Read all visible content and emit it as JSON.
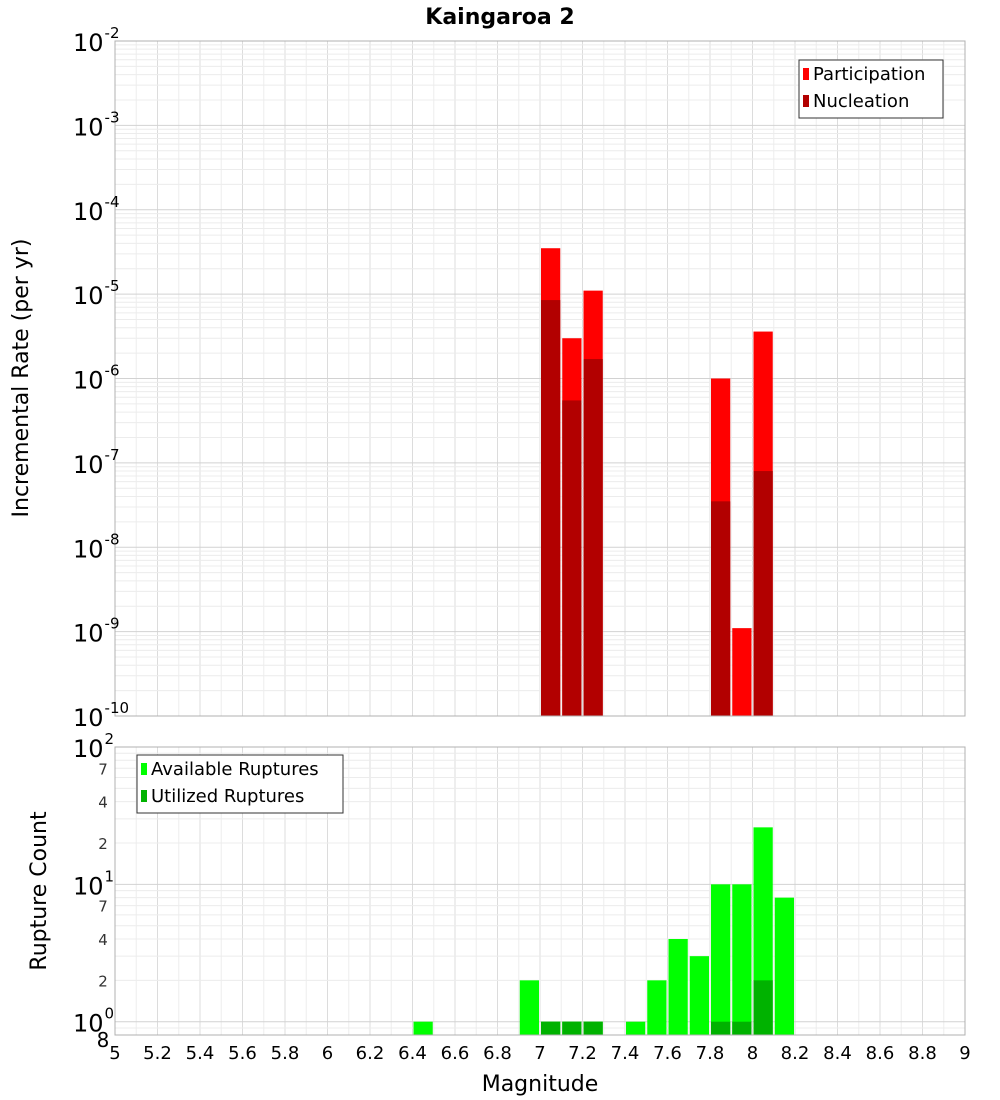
{
  "chart_data": [
    {
      "type": "bar",
      "title": "Kaingaroa 2",
      "ylabel": "Incremental Rate (per yr)",
      "xlabel": "",
      "xlim": [
        5,
        9
      ],
      "ylim": [
        1e-10,
        0.01
      ],
      "yscale": "log",
      "x_ticks": [
        "5",
        "5.2",
        "5.4",
        "5.6",
        "5.8",
        "6",
        "6.2",
        "6.4",
        "6.6",
        "6.8",
        "7",
        "7.2",
        "7.4",
        "7.6",
        "7.8",
        "8",
        "8.2",
        "8.4",
        "8.6",
        "8.8",
        "9"
      ],
      "y_decades": [
        {
          "base": "10",
          "exp": "-10",
          "value": 1e-10
        },
        {
          "base": "10",
          "exp": "-9",
          "value": 1e-09
        },
        {
          "base": "10",
          "exp": "-8",
          "value": 1e-08
        },
        {
          "base": "10",
          "exp": "-7",
          "value": 1e-07
        },
        {
          "base": "10",
          "exp": "-6",
          "value": 1e-06
        },
        {
          "base": "10",
          "exp": "-5",
          "value": 1e-05
        },
        {
          "base": "10",
          "exp": "-4",
          "value": 0.0001
        },
        {
          "base": "10",
          "exp": "-3",
          "value": 0.001
        },
        {
          "base": "10",
          "exp": "-2",
          "value": 0.01
        }
      ],
      "grid": true,
      "legend_position": "top-right",
      "bin_width": 0.1,
      "series": [
        {
          "name": "Participation",
          "color": "#ff0000",
          "x": [
            7.05,
            7.15,
            7.25,
            7.85,
            7.95,
            8.05
          ],
          "values": [
            3.5e-05,
            3e-06,
            1.1e-05,
            1e-06,
            1.1e-09,
            3.6e-06
          ]
        },
        {
          "name": "Nucleation",
          "color": "#b20000",
          "x": [
            7.05,
            7.15,
            7.25,
            7.85,
            8.05
          ],
          "values": [
            8.5e-06,
            5.5e-07,
            1.7e-06,
            3.5e-08,
            8e-08
          ]
        }
      ]
    },
    {
      "type": "bar",
      "title": "",
      "ylabel": "Rupture Count",
      "xlabel": "Magnitude",
      "xlim": [
        5,
        9
      ],
      "ylim": [
        0.8,
        100
      ],
      "yscale": "log",
      "x_ticks": [
        "5",
        "5.2",
        "5.4",
        "5.6",
        "5.8",
        "6",
        "6.2",
        "6.4",
        "6.6",
        "6.8",
        "7",
        "7.2",
        "7.4",
        "7.6",
        "7.8",
        "8",
        "8.2",
        "8.4",
        "8.6",
        "8.8",
        "9"
      ],
      "y_decades": [
        {
          "base": "10",
          "exp": "0",
          "value": 1
        },
        {
          "base": "10",
          "exp": "1",
          "value": 10
        },
        {
          "base": "10",
          "exp": "2",
          "value": 100
        }
      ],
      "y_minor_labels": [
        {
          "label": "8",
          "value": 0.8
        },
        {
          "label": "2",
          "value": 2
        },
        {
          "label": "4",
          "value": 4
        },
        {
          "label": "7",
          "value": 7
        },
        {
          "label": "2",
          "value": 20
        },
        {
          "label": "4",
          "value": 40
        },
        {
          "label": "7",
          "value": 70
        }
      ],
      "grid": true,
      "legend_position": "top-left",
      "bin_width": 0.1,
      "series": [
        {
          "name": "Available Ruptures",
          "color": "#00ff00",
          "x": [
            6.45,
            6.95,
            7.05,
            7.15,
            7.25,
            7.45,
            7.55,
            7.65,
            7.75,
            7.85,
            7.95,
            8.05,
            8.15
          ],
          "values": [
            1,
            2,
            1,
            1,
            1,
            1,
            2,
            4,
            3,
            10,
            10,
            26,
            8
          ]
        },
        {
          "name": "Utilized Ruptures",
          "color": "#00b200",
          "x": [
            7.05,
            7.15,
            7.25,
            7.85,
            7.95,
            8.05
          ],
          "values": [
            1,
            1,
            1,
            1,
            1,
            2
          ]
        }
      ]
    }
  ]
}
